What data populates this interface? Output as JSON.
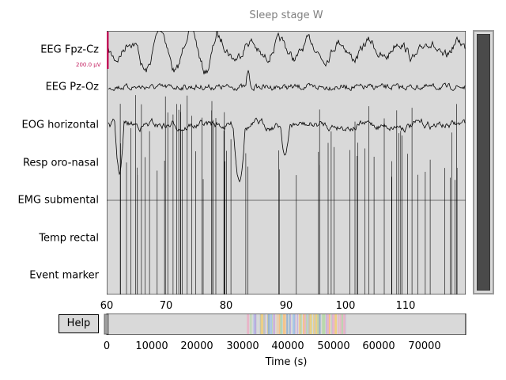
{
  "plot": {
    "title": "Sleep stage W",
    "scale_label": "200.0 µV",
    "channels": [
      {
        "name": "EEG Fpz-Cz"
      },
      {
        "name": "EEG Pz-Oz"
      },
      {
        "name": "EOG horizontal"
      },
      {
        "name": "Resp oro-nasal"
      },
      {
        "name": "EMG submental"
      },
      {
        "name": "Temp rectal"
      },
      {
        "name": "Event marker"
      }
    ],
    "x_ticks": [
      "60",
      "70",
      "80",
      "90",
      "100",
      "110"
    ],
    "x_range": [
      60,
      120
    ],
    "trace_color": "#000000",
    "background_color": "#d9d9d9",
    "scale_color": "#c2185b"
  },
  "overview": {
    "ticks": [
      "0",
      "10000",
      "20000",
      "30000",
      "40000",
      "50000",
      "60000",
      "70000"
    ],
    "xlabel": "Time (s)",
    "x_range": [
      0,
      79000
    ]
  },
  "help": {
    "label": "Help"
  }
}
